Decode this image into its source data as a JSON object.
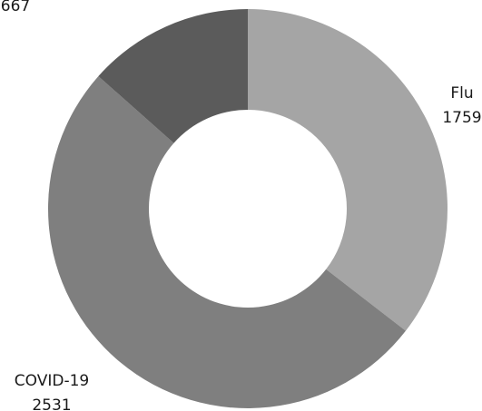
{
  "chart_data": {
    "type": "pie",
    "donut": true,
    "slices": [
      {
        "name": "Flu",
        "value": 1759,
        "color": "#a5a5a5"
      },
      {
        "name": "COVID-19",
        "value": 2531,
        "color": "#7f7f7f"
      },
      {
        "name": "",
        "value": 667,
        "color": "#5b5b5b"
      }
    ],
    "legend": "none",
    "start_angle": "12 o'clock",
    "direction": "clockwise"
  }
}
